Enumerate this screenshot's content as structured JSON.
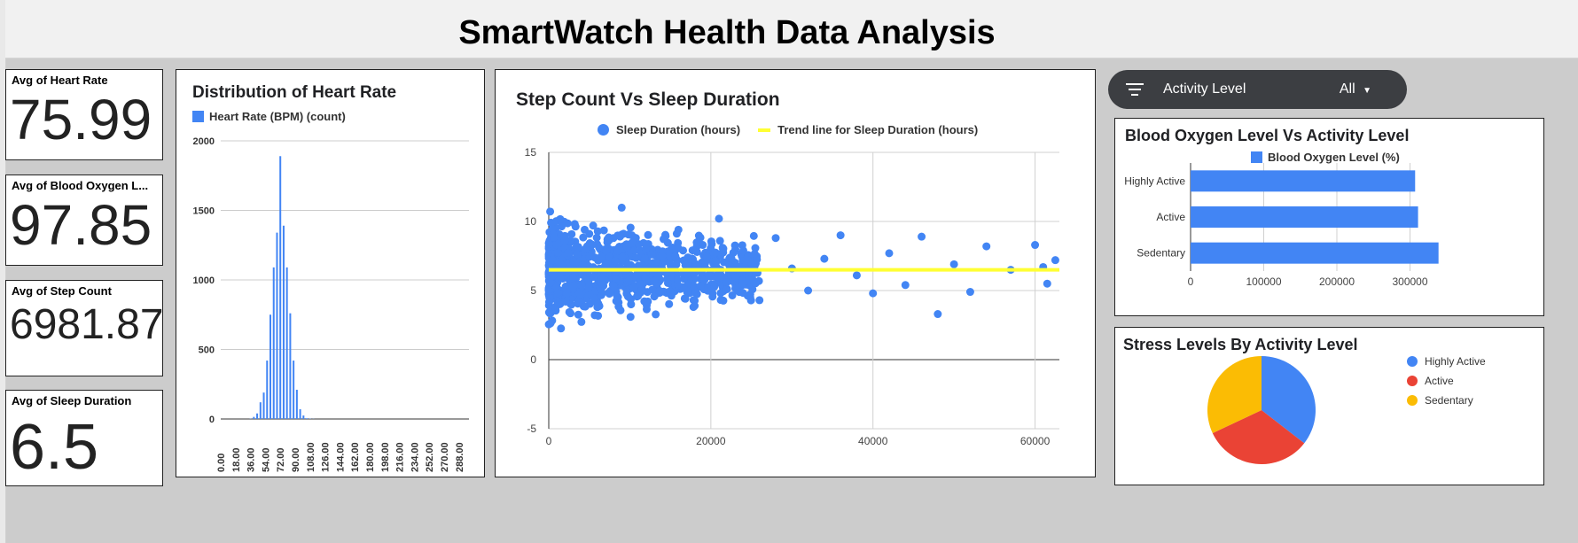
{
  "page": {
    "title": "SmartWatch Health Data Analysis"
  },
  "kpis": [
    {
      "label": "Avg of Heart Rate",
      "value": "75.99"
    },
    {
      "label": "Avg of Blood Oxygen L...",
      "value": "97.85"
    },
    {
      "label": "Avg of Step Count",
      "value": "6981.87"
    },
    {
      "label": "Avg of Sleep Duration",
      "value": "6.5"
    }
  ],
  "filter": {
    "label": "Activity Level",
    "value": "All",
    "icon": "filter-icon",
    "dropdown_icon": "caret-down-icon"
  },
  "colors": {
    "blue": "#4285f4",
    "red": "#ea4335",
    "yellow": "#fbbc04",
    "trend": "#ffff33",
    "chip": "#3c3e42"
  },
  "chart_data": [
    {
      "type": "bar",
      "title": "Distribution of Heart Rate",
      "legend": "Heart Rate (BPM) (count)",
      "categories": [
        "0.00",
        "18.00",
        "36.00",
        "54.00",
        "72.00",
        "90.00",
        "108.00",
        "126.00",
        "144.00",
        "162.00",
        "180.00",
        "198.00",
        "216.00",
        "234.00",
        "252.00",
        "270.00",
        "288.00"
      ],
      "x": [
        36,
        40,
        44,
        48,
        52,
        56,
        60,
        64,
        68,
        72,
        76,
        80,
        84,
        88,
        92,
        96,
        100,
        104,
        108,
        112
      ],
      "values": [
        2,
        15,
        40,
        120,
        190,
        420,
        750,
        1090,
        1340,
        1890,
        1390,
        1090,
        760,
        420,
        210,
        70,
        25,
        5,
        2,
        1
      ],
      "yticks": [
        0,
        500,
        1000,
        1500,
        2000
      ],
      "ylim": [
        0,
        2000
      ],
      "grid": true,
      "legend_position": "top-left"
    },
    {
      "type": "scatter",
      "title": "Step Count Vs Sleep Duration",
      "series": [
        {
          "name": "Sleep Duration (hours)"
        },
        {
          "name": "Trend line for Sleep Duration (hours)",
          "y": 6.5
        }
      ],
      "points": [
        [
          0,
          5
        ],
        [
          500,
          7.2
        ],
        [
          1200,
          4.1
        ],
        [
          2000,
          8.6
        ],
        [
          3000,
          5.9
        ],
        [
          4000,
          6.4
        ],
        [
          5000,
          9.1
        ],
        [
          6000,
          3.8
        ],
        [
          7000,
          7.0
        ],
        [
          8000,
          5.3
        ],
        [
          9000,
          11.0
        ],
        [
          10000,
          6.8
        ],
        [
          11000,
          4.6
        ],
        [
          12000,
          8.0
        ],
        [
          13000,
          5.7
        ],
        [
          14000,
          7.5
        ],
        [
          15000,
          4.9
        ],
        [
          16000,
          9.4
        ],
        [
          17000,
          6.2
        ],
        [
          18000,
          3.9
        ],
        [
          19000,
          8.3
        ],
        [
          20000,
          6.0
        ],
        [
          21000,
          10.2
        ],
        [
          22000,
          5.1
        ],
        [
          24000,
          7.9
        ],
        [
          26000,
          4.3
        ],
        [
          28000,
          8.8
        ],
        [
          30000,
          6.6
        ],
        [
          32000,
          5.0
        ],
        [
          34000,
          7.3
        ],
        [
          36000,
          9.0
        ],
        [
          38000,
          6.1
        ],
        [
          40000,
          4.8
        ],
        [
          42000,
          7.7
        ],
        [
          44000,
          5.4
        ],
        [
          46000,
          8.9
        ],
        [
          48000,
          3.3
        ],
        [
          50000,
          6.9
        ],
        [
          52000,
          4.9
        ],
        [
          54000,
          8.2
        ],
        [
          57000,
          6.5
        ],
        [
          60000,
          8.3
        ],
        [
          61000,
          6.7
        ],
        [
          61500,
          5.5
        ],
        [
          62500,
          7.2
        ]
      ],
      "xticks": [
        0,
        20000,
        40000,
        60000
      ],
      "yticks": [
        -5,
        0,
        5,
        10,
        15
      ],
      "xlim": [
        0,
        63000
      ],
      "ylim": [
        -5,
        15
      ],
      "grid": true,
      "legend_position": "top"
    },
    {
      "type": "bar",
      "orientation": "horizontal",
      "title": "Blood Oxygen Level Vs Activity  Level",
      "legend": "Blood Oxygen Level (%)",
      "categories": [
        "Highly Active",
        "Active",
        "Sedentary"
      ],
      "values": [
        307000,
        311000,
        339000
      ],
      "xticks": [
        0,
        100000,
        200000,
        300000
      ],
      "xlim": [
        0,
        400000
      ],
      "legend_position": "top"
    },
    {
      "type": "pie",
      "title": "Stress Levels By Activity Level",
      "labels": [
        "Highly Active",
        "Active",
        "Sedentary"
      ],
      "values": [
        35.5,
        32.5,
        32
      ],
      "legend_position": "right"
    }
  ]
}
